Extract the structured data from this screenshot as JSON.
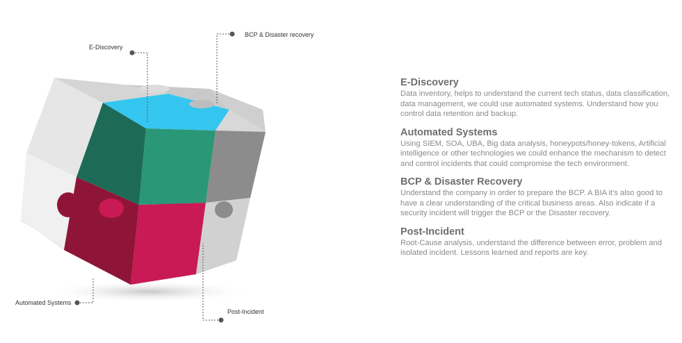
{
  "callouts": {
    "ediscovery": "E-Discovery",
    "bcp": "BCP & Disaster recovery",
    "automated": "Automated Systems",
    "post_incident": "Post-Incident"
  },
  "sections": [
    {
      "title": "E-Discovery",
      "body": "Data inventory, helps to understand the current tech status, data classification, data management, we could use automated systems. Understand how you control data retention and backup."
    },
    {
      "title": "Automated Systems",
      "body": "Using SIEM, SOA, UBA, Big data analysis, honeypots/honey-tokens, Artificial intelligence or other technologies we could enhance the mechanism to detect and control incidents that could compromise the tech environment."
    },
    {
      "title": "BCP & Disaster Recovery",
      "body": "Understand the company in order to prepare the BCP. A BIA it's also good to have a clear understanding of the critical business areas. Also indicate if a security incident will trigger the BCP or the Disaster recovery."
    },
    {
      "title": "Post-Incident",
      "body": "Root-Cause analysis, understand the difference between error, problem and isolated incident. Lessons learned and reports are key."
    }
  ],
  "colors": {
    "dark_green": "#1d6b56",
    "green": "#2a9777",
    "cyan": "#35c6f0",
    "crimson": "#8f1538",
    "pink": "#c91a55",
    "light_gray": "#d9d9d9",
    "mid_gray": "#8c8c8c",
    "pale_gray": "#ededed"
  }
}
